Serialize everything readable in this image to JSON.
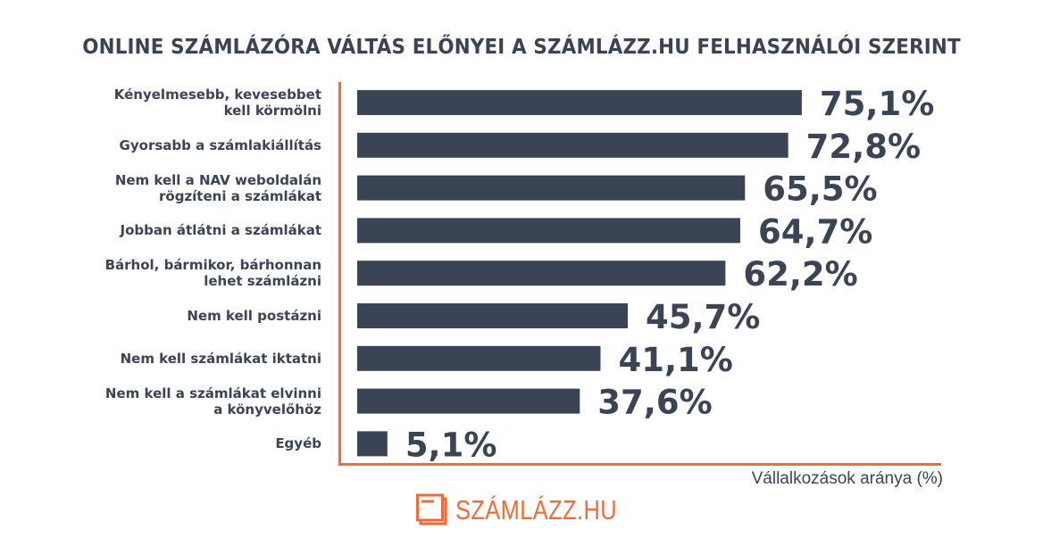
{
  "header": {
    "title": "ONLINE SZÁMLÁZÓRA VÁLTÁS ELŐNYEI A SZÁMLÁZZ.HU FELHASZNÁLÓI SZERINT"
  },
  "colors": {
    "bar": "#3b4454",
    "axis": "#f26b35",
    "text": "#3b4454",
    "brand": "#f26b35"
  },
  "chart_data": {
    "type": "bar",
    "orientation": "horizontal",
    "title": "ONLINE SZÁMLÁZÓRA VÁLTÁS ELŐNYEI A SZÁMLÁZZ.HU FELHASZNÁLÓI SZERINT",
    "xlabel": "Vállalkozások aránya (%)",
    "ylabel": "",
    "xlim": [
      0,
      100
    ],
    "grid": false,
    "legend": "none",
    "categories": [
      "Kényelmesebb, kevesebbet\nkell körmölni",
      "Gyorsabb a számlakiállítás",
      "Nem kell a NAV weboldalán\nrögzíteni a számlákat",
      "Jobban átlátni a számlákat",
      "Bárhol, bármikor, bárhonnan\nlehet számlázni",
      "Nem kell postázni",
      "Nem kell számlákat iktatni",
      "Nem kell a számlákat elvinni\na könyvelőhöz",
      "Egyéb"
    ],
    "values": [
      75.1,
      72.8,
      65.5,
      64.7,
      62.2,
      45.7,
      41.1,
      37.6,
      5.1
    ],
    "data_labels": [
      "75,1%",
      "72,8%",
      "65,5%",
      "64,7%",
      "62,2%",
      "45,7%",
      "41,1%",
      "37,6%",
      "5,1%"
    ]
  },
  "logo": {
    "icon": "invoice-stack-icon",
    "text": "SZÁMLÁZZ.HU"
  }
}
